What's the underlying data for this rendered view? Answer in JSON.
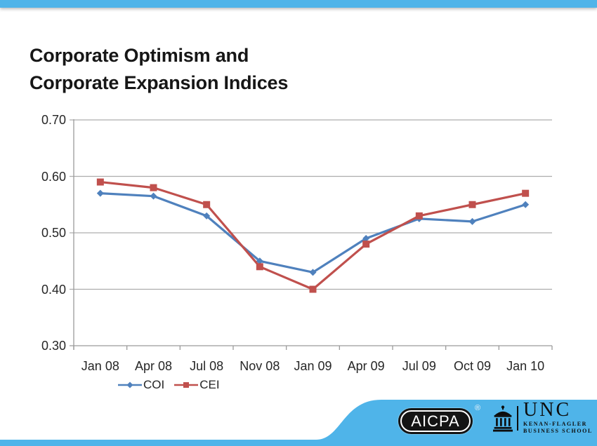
{
  "slide": {
    "title_line1": "Corporate Optimism and",
    "title_line2": "Corporate Expansion Indices"
  },
  "chart_data": {
    "type": "line",
    "title": "Corporate Optimism and Corporate Expansion Indices",
    "categories": [
      "Jan 08",
      "Apr 08",
      "Jul 08",
      "Nov 08",
      "Jan 09",
      "Apr 09",
      "Jul 09",
      "Oct 09",
      "Jan 10"
    ],
    "series": [
      {
        "name": "COI",
        "marker": "diamond",
        "color": "#4F81BD",
        "values": [
          0.57,
          0.565,
          0.53,
          0.45,
          0.43,
          0.49,
          0.525,
          0.52,
          0.55
        ]
      },
      {
        "name": "CEI",
        "marker": "square",
        "color": "#C0504D",
        "values": [
          0.59,
          0.58,
          0.55,
          0.44,
          0.4,
          0.48,
          0.53,
          0.55,
          0.57
        ]
      }
    ],
    "ylim": [
      0.3,
      0.7
    ],
    "yticks": [
      0.3,
      0.4,
      0.5,
      0.6,
      0.7
    ],
    "ytick_labels": [
      "0.30",
      "0.40",
      "0.50",
      "0.60",
      "0.70"
    ],
    "xlabel": "",
    "ylabel": "",
    "grid": true,
    "legend_position": "bottom-left"
  },
  "footer": {
    "aicpa_label": "AICPA",
    "registered_mark": "®",
    "unc_label": "UNC",
    "unc_sub1": "KENAN-FLAGLER",
    "unc_sub2": "BUSINESS SCHOOL"
  },
  "colors": {
    "accent_blue": "#4FB4E9",
    "coi_line": "#4F81BD",
    "cei_line": "#C0504D",
    "gridline": "#ADADAD",
    "axis": "#9B9B9B",
    "chart_text": "#262626"
  }
}
